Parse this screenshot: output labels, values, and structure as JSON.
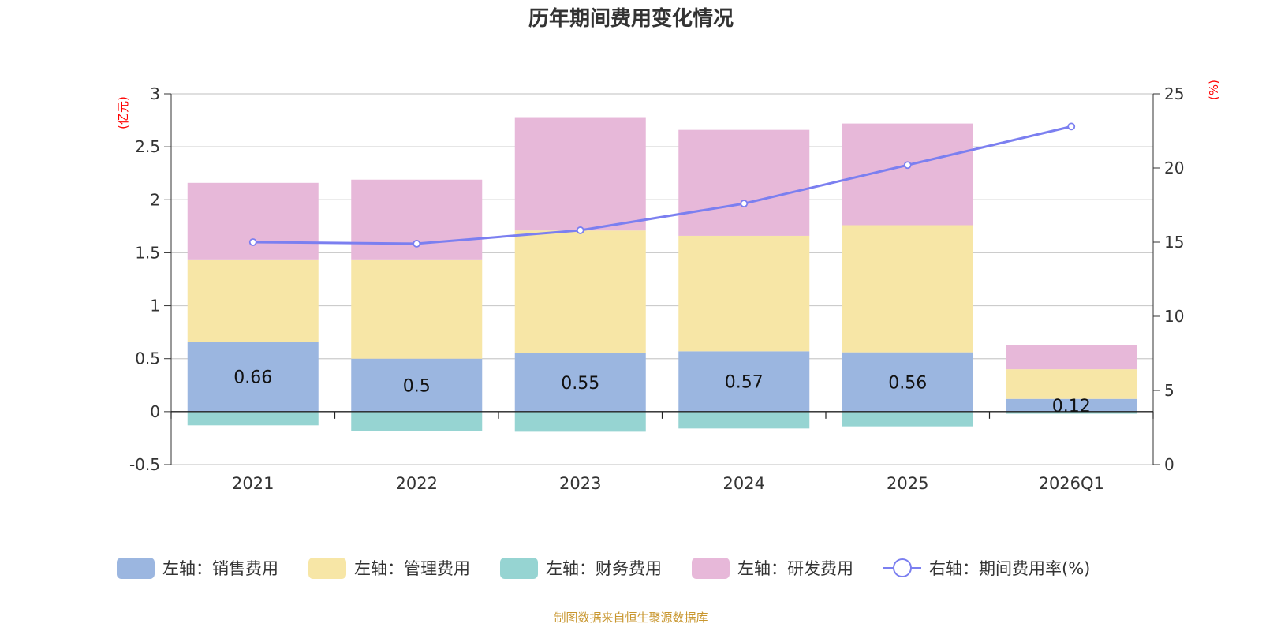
{
  "chart_data": {
    "type": "bar",
    "title": "历年期间费用变化情况",
    "categories": [
      "2021",
      "2022",
      "2023",
      "2024",
      "2025",
      "2026Q1"
    ],
    "left_axis": {
      "unit_label": "(亿元)",
      "ylim": [
        -0.5,
        3
      ],
      "ticks": [
        "3",
        "2.5",
        "2",
        "1.5",
        "1",
        "0.5",
        "0",
        "-0.5"
      ]
    },
    "right_axis": {
      "unit_label": "(%)",
      "ylim": [
        0,
        25
      ],
      "ticks": [
        "25",
        "20",
        "15",
        "10",
        "5",
        "0"
      ]
    },
    "series": [
      {
        "name": "左轴：销售费用",
        "kind": "bar",
        "axis": "left",
        "color": "#9bb6e0",
        "values": [
          0.66,
          0.5,
          0.55,
          0.57,
          0.56,
          0.12
        ],
        "data_labels": [
          "0.66",
          "0.5",
          "0.55",
          "0.57",
          "0.56",
          "0.12"
        ]
      },
      {
        "name": "左轴：管理费用",
        "kind": "bar",
        "axis": "left",
        "color": "#f7e6a6",
        "values": [
          0.77,
          0.93,
          1.16,
          1.09,
          1.2,
          0.28
        ]
      },
      {
        "name": "左轴：财务费用",
        "kind": "bar",
        "axis": "left",
        "color": "#96d4d2",
        "values": [
          -0.13,
          -0.18,
          -0.19,
          -0.16,
          -0.14,
          -0.02
        ]
      },
      {
        "name": "左轴：研发费用",
        "kind": "bar",
        "axis": "left",
        "color": "#e7b8d9",
        "values": [
          0.73,
          0.76,
          1.07,
          1.0,
          0.96,
          0.23
        ]
      },
      {
        "name": "右轴：期间费用率(%)",
        "kind": "line",
        "axis": "right",
        "color": "#7b7ff0",
        "values": [
          15.0,
          14.9,
          15.8,
          17.6,
          20.2,
          22.8
        ]
      }
    ],
    "legend_position": "bottom",
    "grid": true
  },
  "footer": {
    "source_text": "制图数据来自恒生聚源数据库"
  }
}
